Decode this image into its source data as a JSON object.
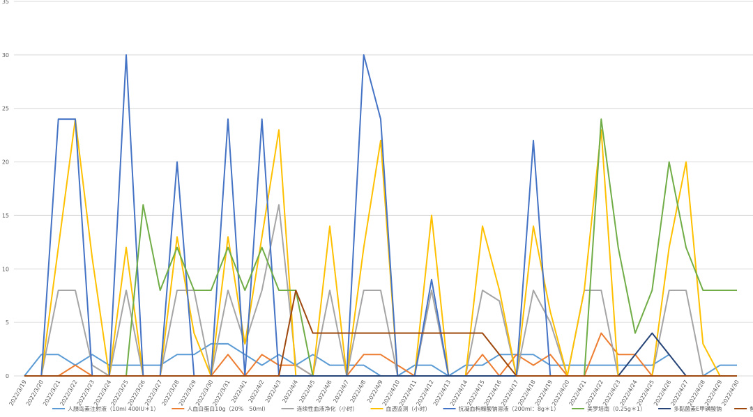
{
  "chart_data": {
    "type": "line",
    "categories": [
      "2022/3/19",
      "2022/3/20",
      "2022/3/21",
      "2022/3/22",
      "2022/3/23",
      "2022/3/24",
      "2022/3/25",
      "2022/3/26",
      "2022/3/27",
      "2022/3/28",
      "2022/3/29",
      "2022/3/30",
      "2022/3/31",
      "2022/4/1",
      "2022/4/2",
      "2022/4/3",
      "2022/4/4",
      "2022/4/5",
      "2022/4/6",
      "2022/4/7",
      "2022/4/8",
      "2022/4/9",
      "2022/4/10",
      "2022/4/11",
      "2022/4/12",
      "2022/4/13",
      "2022/4/14",
      "2022/4/15",
      "2022/4/16",
      "2022/4/17",
      "2022/4/18",
      "2022/4/19",
      "2022/4/20",
      "2022/4/21",
      "2022/4/22",
      "2022/4/23",
      "2022/4/24",
      "2022/4/25",
      "2022/4/26",
      "2022/4/27",
      "2022/4/28",
      "2022/4/29",
      "2022/4/30"
    ],
    "series": [
      {
        "name": "人胰岛素注射液（10ml 400IU＊1）",
        "color": "#5b9bd5",
        "values": [
          0,
          2,
          2,
          1,
          2,
          1,
          1,
          1,
          1,
          2,
          2,
          3,
          3,
          2,
          1,
          2,
          1,
          2,
          1,
          1,
          1,
          0,
          0,
          1,
          1,
          0,
          1,
          1,
          2,
          2,
          2,
          1,
          1,
          1,
          1,
          1,
          1,
          1,
          2,
          null,
          0,
          1,
          1
        ]
      },
      {
        "name": "人血白蛋白10g（20%　50ml）",
        "color": "#ed7d31",
        "values": [
          0,
          0,
          0,
          1,
          0,
          0,
          0,
          0,
          0,
          0,
          0,
          0,
          2,
          0,
          2,
          1,
          1,
          0,
          0,
          0,
          2,
          2,
          1,
          0,
          0,
          0,
          0,
          2,
          0,
          2,
          1,
          2,
          0,
          0,
          4,
          2,
          2,
          0,
          0,
          0,
          0,
          0,
          0
        ]
      },
      {
        "name": "连续性血液净化（小时）",
        "color": "#a5a5a5",
        "values": [
          0,
          0,
          8,
          8,
          1,
          0,
          8,
          0,
          0,
          8,
          8,
          0,
          8,
          3,
          8,
          16,
          1,
          0,
          8,
          0,
          8,
          8,
          0,
          0,
          8,
          0,
          0,
          8,
          7,
          0,
          8,
          5,
          0,
          8,
          8,
          0,
          0,
          0,
          8,
          8,
          0,
          0,
          0
        ]
      },
      {
        "name": "血透监测（小时）",
        "color": "#ffc000",
        "values": [
          0,
          0,
          12,
          24,
          11,
          0,
          12,
          0,
          0,
          13,
          4,
          0,
          13,
          3,
          13,
          23,
          0,
          0,
          14,
          0,
          12,
          22,
          0,
          0,
          15,
          0,
          0,
          14,
          8,
          0,
          14,
          6,
          0,
          8,
          23,
          0,
          0,
          0,
          12,
          20,
          3,
          0,
          0
        ]
      },
      {
        "name": "抗凝血枸橼酸钠溶液（200ml：8g＊1）",
        "color": "#4472c4",
        "values": [
          0,
          0,
          24,
          24,
          0,
          0,
          30,
          0,
          0,
          20,
          0,
          0,
          24,
          0,
          24,
          0,
          0,
          0,
          0,
          0,
          30,
          24,
          0,
          0,
          9,
          0,
          0,
          0,
          0,
          0,
          22,
          0,
          0,
          0,
          0,
          0,
          0,
          0,
          0,
          0,
          0,
          0,
          0
        ]
      },
      {
        "name": "美罗培南（0.25g＊1）",
        "color": "#70ad47",
        "values": [
          0,
          0,
          0,
          0,
          0,
          0,
          0,
          16,
          8,
          12,
          8,
          8,
          12,
          8,
          12,
          8,
          8,
          0,
          0,
          0,
          0,
          0,
          0,
          0,
          0,
          0,
          0,
          0,
          0,
          0,
          0,
          0,
          0,
          0,
          24,
          12,
          4,
          8,
          20,
          12,
          8,
          8,
          8
        ]
      },
      {
        "name": "多黏菌素E甲磺酸钠",
        "color": "#264478",
        "values": [
          0,
          0,
          0,
          0,
          0,
          0,
          0,
          0,
          0,
          0,
          0,
          0,
          0,
          0,
          0,
          0,
          0,
          0,
          0,
          0,
          0,
          0,
          0,
          0,
          0,
          0,
          0,
          0,
          0,
          0,
          0,
          0,
          0,
          0,
          0,
          0,
          2,
          4,
          2,
          0,
          0,
          0,
          0
        ]
      },
      {
        "name": "替加环素",
        "color": "#9e480e",
        "values": [
          0,
          0,
          0,
          0,
          0,
          0,
          0,
          0,
          0,
          0,
          0,
          0,
          0,
          0,
          0,
          0,
          8,
          4,
          4,
          4,
          4,
          4,
          4,
          4,
          4,
          4,
          4,
          4,
          2,
          0,
          0,
          0,
          0,
          0,
          0,
          0,
          0,
          0,
          0,
          0,
          0,
          0,
          0
        ]
      }
    ],
    "ylim": [
      0,
      35
    ],
    "yticks": [
      0,
      5,
      10,
      15,
      20,
      25,
      30,
      35
    ],
    "grid": true
  }
}
